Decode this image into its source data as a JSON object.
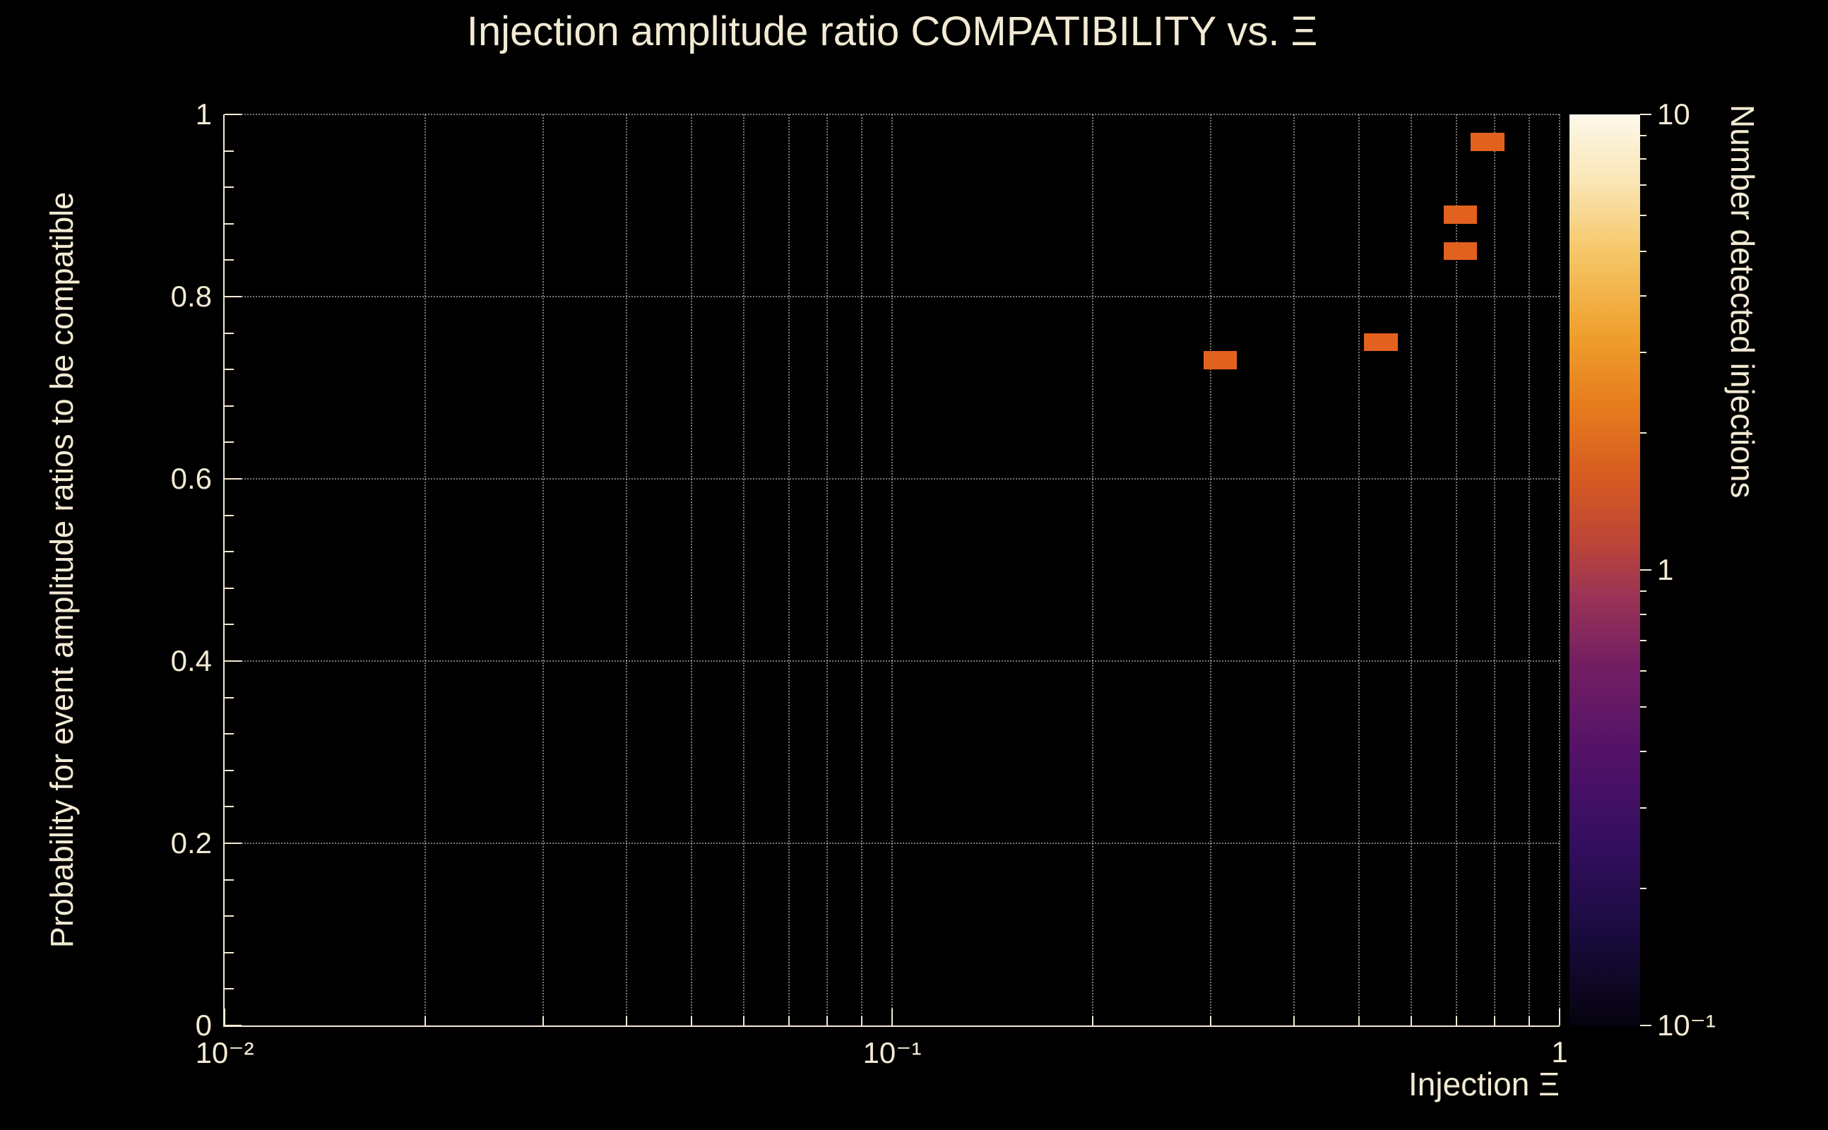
{
  "colors": {
    "background": "#000000",
    "text": "#f2ead3",
    "axis": "#f2ead3",
    "grid": "rgba(243,238,222,0.5)",
    "bin_fill": "#e2611f"
  },
  "chart_data": {
    "type": "heatmap",
    "title": "Injection amplitude ratio COMPATIBILITY vs.  Ξ",
    "xlabel": "Injection Ξ",
    "ylabel": "Probability for event amplitude ratios to be compatible",
    "zlabel": "Number detected injections",
    "x_scale": "log",
    "xlim": [
      0.01,
      1
    ],
    "ylim": [
      0,
      1
    ],
    "z_scale": "log",
    "zlim": [
      0.1,
      10
    ],
    "grid": true,
    "legend": "colorbar-right",
    "x_tick_labels": [
      {
        "value": 0.01,
        "label": "10⁻²"
      },
      {
        "value": 0.1,
        "label": "10⁻¹"
      },
      {
        "value": 1,
        "label": "1"
      }
    ],
    "y_tick_labels": [
      {
        "value": 0,
        "label": "0"
      },
      {
        "value": 0.2,
        "label": "0.2"
      },
      {
        "value": 0.4,
        "label": "0.4"
      },
      {
        "value": 0.6,
        "label": "0.6"
      },
      {
        "value": 0.8,
        "label": "0.8"
      },
      {
        "value": 1,
        "label": "1"
      }
    ],
    "z_tick_labels": [
      {
        "value": 10,
        "label": "10"
      },
      {
        "value": 1,
        "label": "1"
      },
      {
        "value": 0.1,
        "label": "10⁻¹"
      }
    ],
    "bin_width_decades": 0.05,
    "bin_height": 0.02,
    "points": [
      {
        "x": 0.31,
        "y": 0.73,
        "count": 1
      },
      {
        "x": 0.54,
        "y": 0.75,
        "count": 1
      },
      {
        "x": 0.71,
        "y": 0.85,
        "count": 1
      },
      {
        "x": 0.71,
        "y": 0.89,
        "count": 1
      },
      {
        "x": 0.78,
        "y": 0.97,
        "count": 1
      }
    ],
    "palette_stops": [
      "#06030e 0%",
      "#190b3e 10%",
      "#340e60 20%",
      "#531268 30%",
      "#751f63 40%",
      "#9a3355 47%",
      "#bc4537 53%",
      "#d65a22 60%",
      "#e67c1d 68%",
      "#efa02e 76%",
      "#f5c768 85%",
      "#fae7b9 93%",
      "#fdf8ea 100%"
    ]
  }
}
